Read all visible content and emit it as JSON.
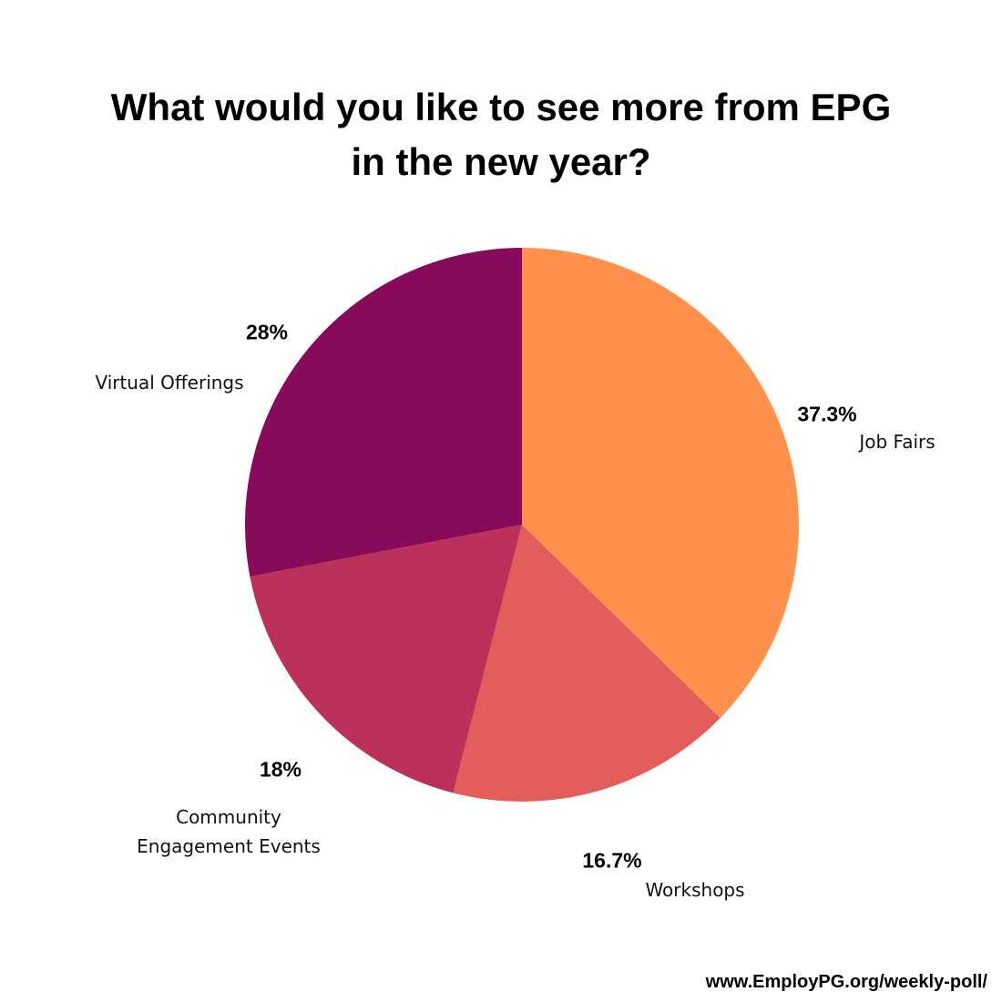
{
  "chart_data": {
    "type": "pie",
    "title": "What would you like to see more from EPG in the new year?",
    "categories": [
      "Job Fairs",
      "Workshops",
      "Community Engagement Events",
      "Virtual Offerings"
    ],
    "values": [
      37.3,
      16.7,
      18,
      28
    ],
    "value_labels": [
      "37.3%",
      "16.7%",
      "18%",
      "28%"
    ],
    "colors": [
      "#ff914d",
      "#e35d5a",
      "#bc3159",
      "#880a5a"
    ],
    "source": "www.EmployPG.org/weekly-poll/"
  }
}
